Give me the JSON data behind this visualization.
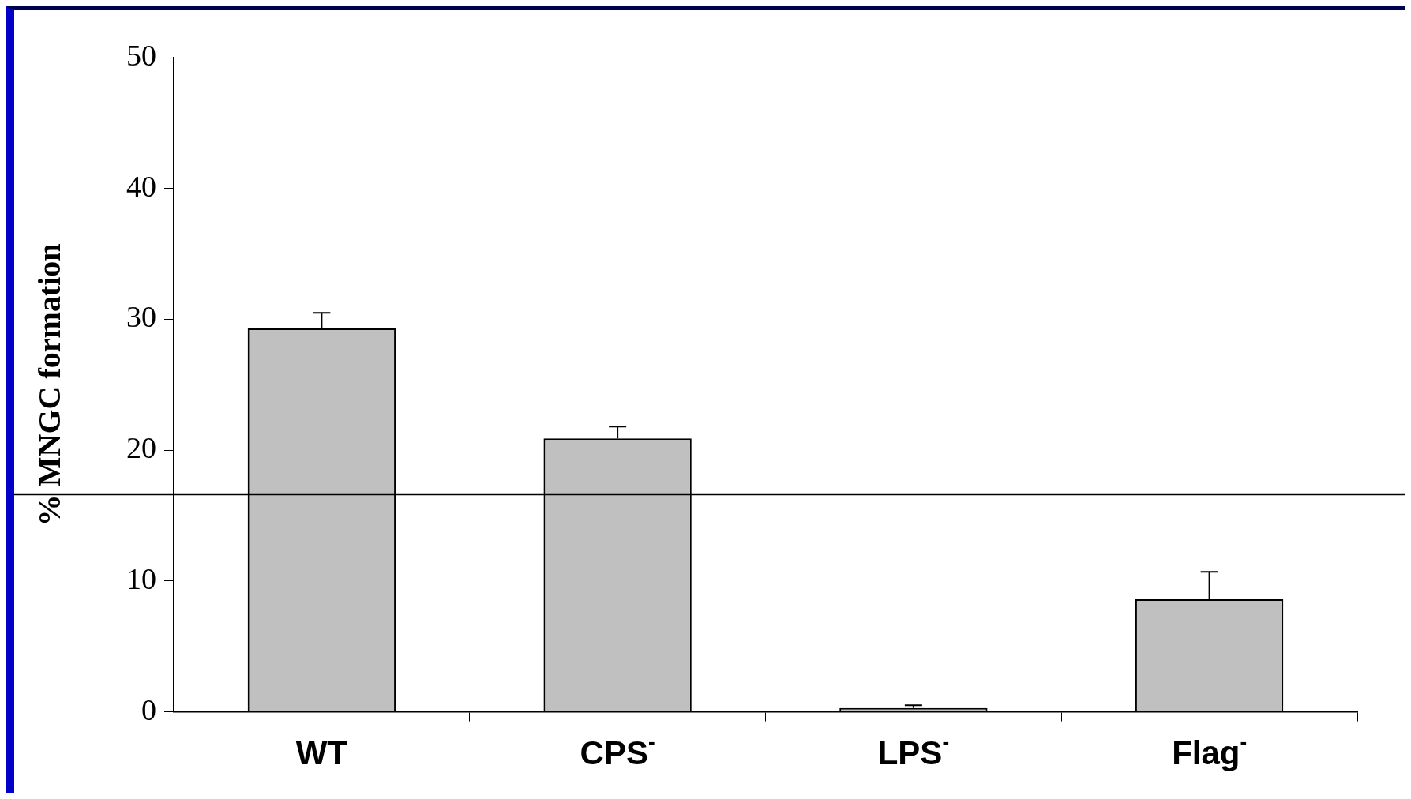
{
  "chart_data": {
    "type": "bar",
    "ylabel": "% MNGC formation",
    "categories": [
      "WT",
      "CPS$^{-}$",
      "LPS$^{-}$",
      "Flag$^{-}$"
    ],
    "values": [
      29.3,
      20.9,
      0.3,
      8.6
    ],
    "errors": [
      [
        29.3,
        30.5
      ],
      [
        20.9,
        21.8
      ],
      [
        0.3,
        0.5
      ],
      [
        8.6,
        10.7
      ]
    ],
    "color": "#c0c0c0",
    "ylim": [
      0,
      50
    ],
    "yticks": [
      0,
      10,
      20,
      30,
      40,
      50
    ],
    "ref_lines": [
      {
        "axis": "y",
        "value": 16.6,
        "color": "#000000"
      }
    ],
    "grid": false,
    "legend": false
  }
}
